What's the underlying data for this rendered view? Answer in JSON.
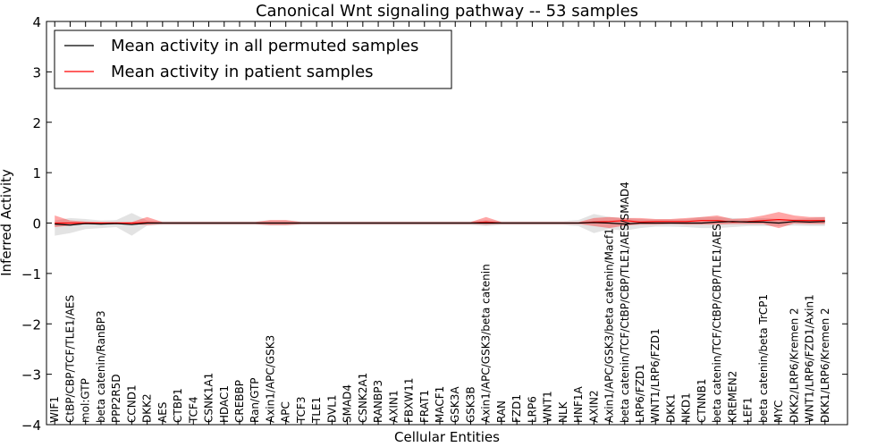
{
  "chart_data": {
    "type": "line",
    "title": "Canonical Wnt signaling pathway -- 53 samples",
    "xlabel": "Cellular Entities",
    "ylabel": "Inferred Activity",
    "ylim": [
      -4,
      4
    ],
    "yticks": [
      "4",
      "3",
      "2",
      "1",
      "0",
      "−1",
      "−2",
      "−3",
      "−4"
    ],
    "ytick_values": [
      4,
      3,
      2,
      1,
      0,
      -1,
      -2,
      -3,
      -4
    ],
    "legend_position": "top-left",
    "categories": [
      "WIF1",
      "CtBP/CBP/TCF/TLE1/AES",
      "mol:GTP",
      "beta catenin/RanBP3",
      "PPP2R5D",
      "CCND1",
      "DKK2",
      "AES",
      "CTBP1",
      "TCF4",
      "CSNK1A1",
      "HDAC1",
      "CREBBP",
      "Ran/GTP",
      "Axin1/APC/GSK3",
      "APC",
      "TCF3",
      "TLE1",
      "DVL1",
      "SMAD4",
      "CSNK2A1",
      "RANBP3",
      "AXIN1",
      "FBXW11",
      "FRAT1",
      "MACF1",
      "GSK3A",
      "GSK3B",
      "Axin1/APC/GSK3/beta catenin",
      "RAN",
      "FZD1",
      "LRP6",
      "WNT1",
      "NLK",
      "HNF1A",
      "AXIN2",
      "Axin1/APC/GSK3/beta catenin/Macf1",
      "beta catenin/TCF/CtBP/CBP/TLE1/AES/SMAD4",
      "LRP6/FZD1",
      "WNT1/LRP6/FZD1",
      "DKK1",
      "NKD1",
      "CTNNB1",
      "beta catenin/TCF/CtBP/CBP/TLE1/AES",
      "KREMEN2",
      "LEF1",
      "beta catenin/beta TrCP1",
      "MYC",
      "DKK2/LRP6/Kremen 2",
      "WNT1/LRP6/FZD1/Axin1",
      "DKK1/LRP6/Kremen 2"
    ],
    "series": [
      {
        "name": "Mean activity in all permuted samples",
        "color": "#000000",
        "values": [
          -0.02,
          -0.04,
          -0.01,
          -0.02,
          -0.01,
          -0.03,
          0.0,
          0.0,
          0.0,
          0.0,
          0.0,
          0.0,
          0.0,
          0.0,
          0.0,
          0.0,
          0.0,
          0.0,
          0.0,
          0.0,
          0.0,
          0.0,
          0.0,
          0.0,
          0.0,
          0.0,
          0.0,
          0.0,
          0.0,
          0.0,
          0.0,
          0.0,
          0.0,
          0.0,
          0.0,
          0.01,
          0.0,
          -0.02,
          0.0,
          0.0,
          0.0,
          0.0,
          0.0,
          0.02,
          0.03,
          0.02,
          0.02,
          0.0,
          0.03,
          0.02,
          0.03
        ],
        "band_lower": [
          -0.25,
          -0.2,
          -0.12,
          -0.1,
          -0.08,
          -0.25,
          -0.05,
          -0.04,
          -0.04,
          -0.04,
          -0.04,
          -0.04,
          -0.04,
          -0.04,
          -0.05,
          -0.05,
          -0.04,
          -0.04,
          -0.04,
          -0.04,
          -0.04,
          -0.04,
          -0.04,
          -0.04,
          -0.04,
          -0.04,
          -0.04,
          -0.04,
          -0.06,
          -0.04,
          -0.04,
          -0.04,
          -0.04,
          -0.04,
          -0.06,
          -0.2,
          -0.12,
          -0.15,
          -0.1,
          -0.07,
          -0.07,
          -0.08,
          -0.1,
          -0.1,
          -0.08,
          -0.06,
          -0.06,
          -0.06,
          -0.05,
          -0.06,
          -0.06
        ],
        "band_upper": [
          0.05,
          0.1,
          0.08,
          0.05,
          0.06,
          0.2,
          0.05,
          0.04,
          0.04,
          0.04,
          0.04,
          0.04,
          0.04,
          0.04,
          0.05,
          0.05,
          0.04,
          0.04,
          0.04,
          0.04,
          0.04,
          0.04,
          0.04,
          0.04,
          0.04,
          0.04,
          0.04,
          0.04,
          0.06,
          0.04,
          0.04,
          0.04,
          0.04,
          0.04,
          0.06,
          0.18,
          0.12,
          0.1,
          0.08,
          0.07,
          0.07,
          0.08,
          0.12,
          0.12,
          0.1,
          0.08,
          0.1,
          0.08,
          0.08,
          0.1,
          0.12
        ]
      },
      {
        "name": "Mean activity in patient samples",
        "color": "#ff0000",
        "values": [
          0.0,
          0.0,
          0.0,
          0.0,
          0.0,
          0.0,
          0.01,
          0.0,
          0.0,
          0.0,
          0.0,
          0.0,
          0.0,
          0.0,
          0.0,
          0.0,
          0.0,
          0.0,
          0.0,
          0.0,
          0.0,
          0.0,
          0.0,
          0.0,
          0.0,
          0.0,
          0.0,
          0.0,
          0.02,
          0.0,
          0.0,
          0.0,
          0.0,
          0.0,
          0.0,
          0.02,
          0.03,
          0.05,
          0.02,
          0.03,
          0.03,
          0.03,
          0.05,
          0.05,
          0.02,
          0.03,
          0.05,
          0.07,
          0.05,
          0.05,
          0.05
        ],
        "band_lower": [
          -0.08,
          -0.05,
          -0.02,
          -0.02,
          -0.02,
          -0.02,
          -0.04,
          -0.02,
          -0.02,
          -0.02,
          -0.02,
          -0.02,
          -0.02,
          -0.02,
          -0.04,
          -0.04,
          -0.02,
          -0.02,
          -0.02,
          -0.02,
          -0.02,
          -0.02,
          -0.02,
          -0.02,
          -0.02,
          -0.02,
          -0.02,
          -0.02,
          -0.03,
          -0.02,
          -0.02,
          -0.02,
          -0.02,
          -0.02,
          -0.02,
          -0.06,
          -0.1,
          -0.05,
          -0.03,
          -0.03,
          -0.02,
          -0.03,
          -0.03,
          -0.03,
          -0.02,
          -0.02,
          -0.02,
          -0.1,
          -0.01,
          -0.02,
          -0.02
        ],
        "band_upper": [
          0.15,
          0.05,
          0.03,
          0.02,
          0.02,
          0.02,
          0.12,
          0.02,
          0.02,
          0.02,
          0.02,
          0.02,
          0.02,
          0.02,
          0.06,
          0.06,
          0.02,
          0.02,
          0.02,
          0.02,
          0.02,
          0.02,
          0.02,
          0.02,
          0.02,
          0.02,
          0.02,
          0.02,
          0.12,
          0.02,
          0.02,
          0.02,
          0.02,
          0.02,
          0.02,
          0.1,
          0.12,
          0.1,
          0.1,
          0.08,
          0.08,
          0.1,
          0.12,
          0.15,
          0.08,
          0.1,
          0.15,
          0.22,
          0.15,
          0.12,
          0.12
        ]
      }
    ]
  }
}
